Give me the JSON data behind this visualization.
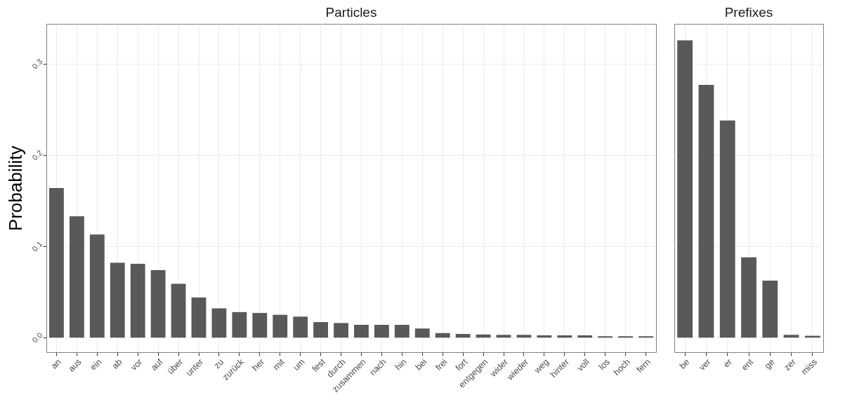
{
  "chart_data": [
    {
      "type": "bar",
      "title": "Particles",
      "ylabel": "Probability",
      "categories": [
        "an",
        "aus",
        "ein",
        "ab",
        "vor",
        "auf",
        "über",
        "unter",
        "zu",
        "zurück",
        "her",
        "mit",
        "um",
        "fest",
        "durch",
        "zusammen",
        "nach",
        "hin",
        "bei",
        "frei",
        "fort",
        "entgegen",
        "wider",
        "wieder",
        "weg",
        "hinter",
        "voll",
        "los",
        "hoch",
        "fern"
      ],
      "values": [
        0.164,
        0.133,
        0.113,
        0.082,
        0.081,
        0.074,
        0.059,
        0.044,
        0.032,
        0.028,
        0.027,
        0.025,
        0.023,
        0.017,
        0.016,
        0.014,
        0.014,
        0.014,
        0.01,
        0.005,
        0.004,
        0.0035,
        0.003,
        0.003,
        0.0025,
        0.0025,
        0.0025,
        0.0015,
        0.0015,
        0.0015
      ],
      "color": "#595959",
      "ylim": [
        -0.016,
        0.344
      ],
      "yticks": [
        {
          "value": 0,
          "label": "0.0"
        },
        0.1,
        0.2,
        0.3
      ],
      "grid": true
    },
    {
      "type": "bar",
      "title": "Prefixes",
      "categories": [
        "be",
        "ver",
        "er",
        "ent",
        "ge",
        "zer",
        "miss"
      ],
      "values": [
        0.326,
        0.277,
        0.238,
        0.088,
        0.0625,
        0.003,
        0.002
      ],
      "color": "#595959",
      "ylim": [
        -0.016,
        0.344
      ],
      "yticks": [
        0,
        0.1,
        0.2,
        0.3
      ],
      "grid": true,
      "tick_labels": "x"
    }
  ]
}
